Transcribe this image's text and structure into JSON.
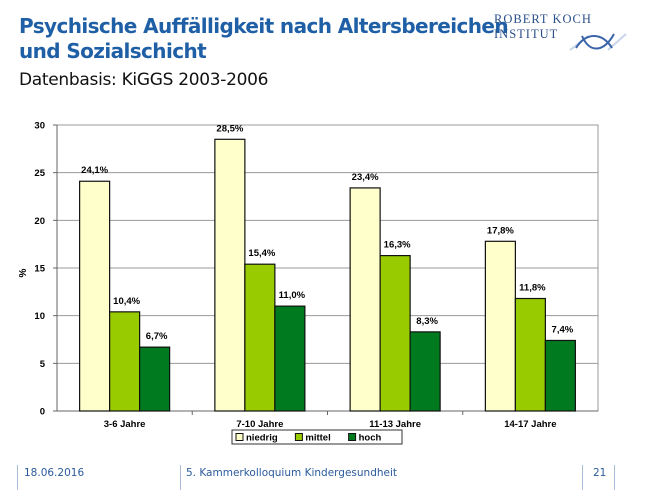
{
  "header": {
    "title_line1": "Psychische Auffälligkeit nach Altersbereichen",
    "title_line2": "und Sozialschicht",
    "subtitle": "Datenbasis: KiGGS 2003-2006",
    "logo_text": "ROBERT KOCH INSTITUT",
    "logo_icon": "rki-fish-logo-icon"
  },
  "footer": {
    "date": "18.06.2016",
    "event": "5. Kammerkolloquium Kindergesundheit",
    "page": "21"
  },
  "chart_data": {
    "type": "bar",
    "title": "",
    "xlabel": "",
    "ylabel": "%",
    "ylim": [
      0,
      30
    ],
    "yticks": [
      0,
      5,
      10,
      15,
      20,
      25,
      30
    ],
    "grid": true,
    "legend_position": "bottom",
    "categories": [
      "3-6 Jahre",
      "7-10 Jahre",
      "11-13 Jahre",
      "14-17 Jahre"
    ],
    "series": [
      {
        "name": "niedrig",
        "color": "#ffffcc",
        "values": [
          24.1,
          28.5,
          23.4,
          17.8
        ],
        "labels": [
          "24,1%",
          "28,5%",
          "23,4%",
          "17,8%"
        ]
      },
      {
        "name": "mittel",
        "color": "#99cc00",
        "values": [
          10.4,
          15.4,
          16.3,
          11.8
        ],
        "labels": [
          "10,4%",
          "15,4%",
          "16,3%",
          "11,8%"
        ]
      },
      {
        "name": "hoch",
        "color": "#007a1f",
        "values": [
          6.7,
          11.0,
          8.3,
          7.4
        ],
        "labels": [
          "6,7%",
          "11,0%",
          "8,3%",
          "7,4%"
        ]
      }
    ]
  }
}
